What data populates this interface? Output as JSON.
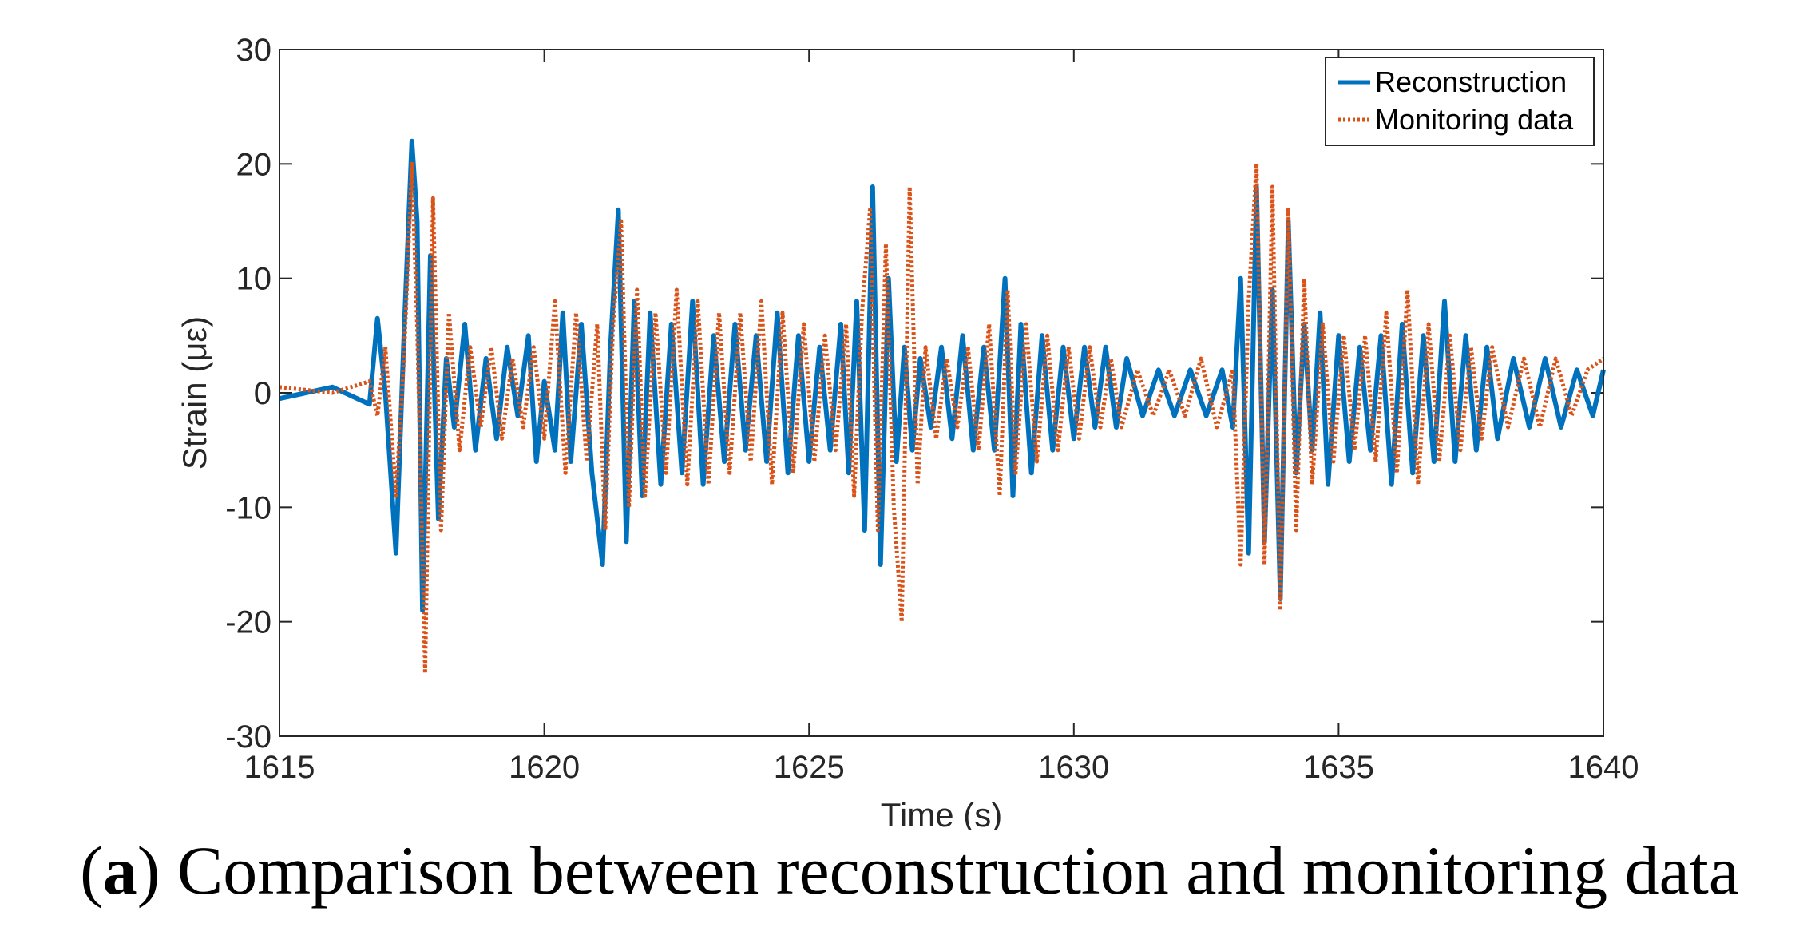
{
  "chart_data": {
    "type": "line",
    "title": "",
    "xlabel": "Time (s)",
    "ylabel": "Strain (με)",
    "xlim": [
      1615,
      1640
    ],
    "ylim": [
      -30,
      30
    ],
    "xticks": [
      1615,
      1620,
      1625,
      1630,
      1635,
      1640
    ],
    "yticks": [
      30,
      20,
      10,
      0,
      -10,
      -20,
      -30
    ],
    "legend_position": "top-right",
    "series": [
      {
        "name": "Reconstruction",
        "style": "solid",
        "color": "#0072BD",
        "t": [
          1615.0,
          1616.0,
          1616.7,
          1616.85,
          1617.0,
          1617.2,
          1617.35,
          1617.5,
          1617.6,
          1617.7,
          1617.85,
          1618.0,
          1618.15,
          1618.3,
          1618.5,
          1618.7,
          1618.9,
          1619.1,
          1619.3,
          1619.5,
          1619.7,
          1619.85,
          1620.0,
          1620.2,
          1620.35,
          1620.5,
          1620.7,
          1620.9,
          1621.1,
          1621.25,
          1621.4,
          1621.55,
          1621.7,
          1621.85,
          1622.0,
          1622.2,
          1622.4,
          1622.6,
          1622.8,
          1623.0,
          1623.2,
          1623.4,
          1623.6,
          1623.8,
          1624.0,
          1624.2,
          1624.4,
          1624.6,
          1624.8,
          1625.0,
          1625.2,
          1625.4,
          1625.6,
          1625.75,
          1625.9,
          1626.05,
          1626.2,
          1626.35,
          1626.5,
          1626.65,
          1626.8,
          1626.95,
          1627.1,
          1627.3,
          1627.5,
          1627.7,
          1627.9,
          1628.1,
          1628.3,
          1628.5,
          1628.7,
          1628.85,
          1629.0,
          1629.2,
          1629.4,
          1629.6,
          1629.8,
          1630.0,
          1630.2,
          1630.4,
          1630.6,
          1630.8,
          1631.0,
          1631.3,
          1631.6,
          1631.9,
          1632.2,
          1632.5,
          1632.8,
          1633.0,
          1633.15,
          1633.3,
          1633.45,
          1633.6,
          1633.75,
          1633.9,
          1634.05,
          1634.2,
          1634.35,
          1634.5,
          1634.65,
          1634.8,
          1635.0,
          1635.2,
          1635.4,
          1635.6,
          1635.8,
          1636.0,
          1636.2,
          1636.4,
          1636.6,
          1636.8,
          1637.0,
          1637.2,
          1637.4,
          1637.6,
          1637.8,
          1638.0,
          1638.3,
          1638.6,
          1638.9,
          1639.2,
          1639.5,
          1639.8,
          1640.0
        ],
        "y": [
          -0.5,
          0.5,
          -1.0,
          6.5,
          0.0,
          -14.0,
          5.0,
          22.0,
          15.0,
          -19.0,
          12.0,
          -11.0,
          3.0,
          -3.0,
          6.0,
          -5.0,
          3.0,
          -4.0,
          4.0,
          -2.0,
          5.0,
          -6.0,
          1.0,
          -5.0,
          7.0,
          -6.0,
          6.0,
          -7.0,
          -15.0,
          4.0,
          16.0,
          -13.0,
          8.0,
          -9.0,
          7.0,
          -8.0,
          6.0,
          -7.0,
          8.0,
          -8.0,
          5.0,
          -6.0,
          6.0,
          -5.0,
          5.0,
          -6.0,
          7.0,
          -7.0,
          5.0,
          -6.0,
          4.0,
          -5.0,
          6.0,
          -7.0,
          8.0,
          -12.0,
          18.0,
          -15.0,
          10.0,
          -6.0,
          4.0,
          -5.0,
          3.0,
          -3.0,
          4.0,
          -4.0,
          5.0,
          -5.0,
          4.0,
          -5.0,
          10.0,
          -9.0,
          6.0,
          -7.0,
          5.0,
          -5.0,
          4.0,
          -4.0,
          4.0,
          -3.0,
          4.0,
          -3.0,
          3.0,
          -2.0,
          2.0,
          -2.0,
          2.0,
          -2.0,
          2.0,
          -3.0,
          10.0,
          -14.0,
          18.0,
          -13.0,
          9.0,
          -18.0,
          15.0,
          -7.0,
          6.0,
          -5.0,
          7.0,
          -8.0,
          5.0,
          -6.0,
          4.0,
          -5.0,
          5.0,
          -8.0,
          6.0,
          -7.0,
          5.0,
          -6.0,
          8.0,
          -6.0,
          5.0,
          -5.0,
          4.0,
          -4.0,
          3.0,
          -3.0,
          3.0,
          -3.0,
          2.0,
          -2.0,
          2.0
        ]
      },
      {
        "name": "Monitoring data",
        "style": "dotted",
        "color": "#D95319",
        "t": [
          1615.0,
          1616.0,
          1616.7,
          1616.85,
          1617.0,
          1617.2,
          1617.35,
          1617.5,
          1617.6,
          1617.75,
          1617.9,
          1618.05,
          1618.2,
          1618.4,
          1618.6,
          1618.8,
          1619.0,
          1619.2,
          1619.4,
          1619.6,
          1619.8,
          1620.0,
          1620.2,
          1620.4,
          1620.6,
          1620.8,
          1621.0,
          1621.15,
          1621.3,
          1621.45,
          1621.6,
          1621.75,
          1621.9,
          1622.1,
          1622.3,
          1622.5,
          1622.7,
          1622.9,
          1623.1,
          1623.3,
          1623.5,
          1623.7,
          1623.9,
          1624.1,
          1624.3,
          1624.5,
          1624.7,
          1624.9,
          1625.1,
          1625.3,
          1625.5,
          1625.7,
          1625.85,
          1626.0,
          1626.15,
          1626.3,
          1626.45,
          1626.6,
          1626.75,
          1626.9,
          1627.05,
          1627.2,
          1627.4,
          1627.6,
          1627.8,
          1628.0,
          1628.2,
          1628.4,
          1628.6,
          1628.75,
          1628.9,
          1629.1,
          1629.3,
          1629.5,
          1629.7,
          1629.9,
          1630.1,
          1630.3,
          1630.5,
          1630.7,
          1630.9,
          1631.2,
          1631.5,
          1631.8,
          1632.1,
          1632.4,
          1632.7,
          1633.0,
          1633.15,
          1633.3,
          1633.45,
          1633.6,
          1633.75,
          1633.9,
          1634.05,
          1634.2,
          1634.35,
          1634.5,
          1634.7,
          1634.9,
          1635.1,
          1635.3,
          1635.5,
          1635.7,
          1635.9,
          1636.1,
          1636.3,
          1636.5,
          1636.7,
          1636.9,
          1637.1,
          1637.3,
          1637.5,
          1637.7,
          1637.9,
          1638.2,
          1638.5,
          1638.8,
          1639.1,
          1639.4,
          1639.7,
          1640.0
        ],
        "y": [
          0.5,
          0.0,
          1.0,
          -2.0,
          4.0,
          -9.0,
          3.0,
          20.0,
          6.0,
          -24.5,
          17.0,
          -12.0,
          7.0,
          -5.0,
          4.0,
          -3.0,
          4.0,
          -4.0,
          3.0,
          -3.0,
          4.0,
          -4.0,
          8.0,
          -7.0,
          7.0,
          -6.0,
          6.0,
          -12.0,
          6.0,
          15.0,
          -10.0,
          9.0,
          -9.0,
          7.0,
          -7.0,
          9.0,
          -8.0,
          8.0,
          -8.0,
          7.0,
          -7.0,
          7.0,
          -6.0,
          8.0,
          -8.0,
          7.0,
          -7.0,
          6.0,
          -6.0,
          5.0,
          -5.0,
          6.0,
          -9.0,
          7.0,
          16.0,
          -12.0,
          13.0,
          -10.0,
          -20.0,
          18.0,
          -8.0,
          4.0,
          -4.0,
          3.0,
          -3.0,
          4.0,
          -5.0,
          6.0,
          -9.0,
          9.0,
          -7.0,
          6.0,
          -6.0,
          5.0,
          -5.0,
          4.0,
          -4.0,
          4.0,
          -3.0,
          3.0,
          -3.0,
          2.0,
          -2.0,
          2.0,
          -2.0,
          3.0,
          -3.0,
          2.0,
          -15.0,
          8.0,
          20.0,
          -15.0,
          18.0,
          -19.0,
          16.0,
          -12.0,
          10.0,
          -8.0,
          6.0,
          -6.0,
          5.0,
          -5.0,
          5.0,
          -6.0,
          7.0,
          -7.0,
          9.0,
          -8.0,
          6.0,
          -6.0,
          5.0,
          -5.0,
          4.0,
          -4.0,
          4.0,
          -3.0,
          3.0,
          -3.0,
          3.0,
          -2.0,
          2.0,
          3.0
        ]
      }
    ]
  },
  "caption": {
    "label": "a",
    "text": " Comparison between reconstruction and monitoring data"
  }
}
